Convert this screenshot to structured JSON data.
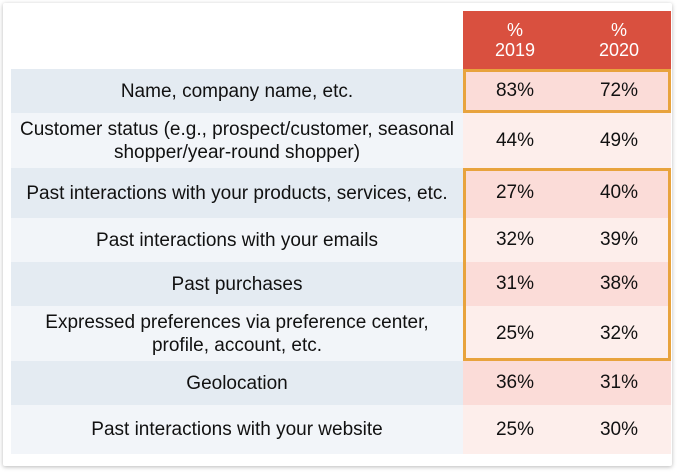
{
  "colors": {
    "header_bg": "#d9503f",
    "label_dark": "#e4ebf2",
    "label_light": "#f2f5f9",
    "value_dark": "#fbdcd8",
    "value_light": "#fdeeeb",
    "highlight_border": "#e8a33d"
  },
  "chart_data": {
    "type": "table",
    "columns": [
      "% 2019",
      "% 2020"
    ],
    "rows": [
      {
        "label": "Name, company name, etc.",
        "values": [
          "83%",
          "72%"
        ]
      },
      {
        "label": "Customer status (e.g., prospect/customer, seasonal shopper/year-round shopper)",
        "values": [
          "44%",
          "49%"
        ]
      },
      {
        "label": "Past interactions with your products, services, etc.",
        "values": [
          "27%",
          "40%"
        ]
      },
      {
        "label": "Past interactions with your emails",
        "values": [
          "32%",
          "39%"
        ]
      },
      {
        "label": "Past purchases",
        "values": [
          "31%",
          "38%"
        ]
      },
      {
        "label": "Expressed preferences via preference center, profile, account, etc.",
        "values": [
          "25%",
          "32%"
        ]
      },
      {
        "label": "Geolocation",
        "values": [
          "36%",
          "31%"
        ]
      },
      {
        "label": "Past interactions with your website",
        "values": [
          "25%",
          "30%"
        ]
      }
    ],
    "highlight_groups": [
      [
        0
      ],
      [
        2,
        3,
        4,
        5
      ]
    ]
  }
}
